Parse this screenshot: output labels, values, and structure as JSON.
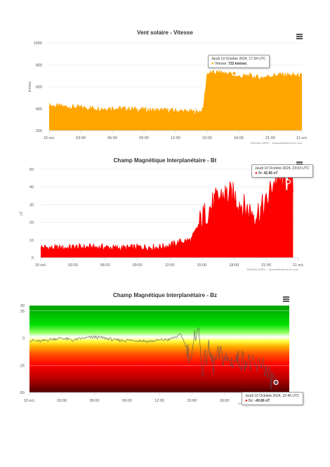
{
  "charts": [
    {
      "title": "Vent solaire - Vitesse",
      "ylabel": "km/sec",
      "credit": "BNOAA SWPC - SpaceWeatherLive.com",
      "tooltip": {
        "date": "Jeudi 10 Octobre 2024, 17:34 UTC",
        "series": "Vitesse:",
        "value": "722 km/sec"
      }
    },
    {
      "title": "Champ Magnétique Interplanétaire - Bt",
      "ylabel": "nT",
      "credit": "BNOAA SWPC - SpaceWeatherLive.com",
      "tooltip": {
        "date": "Jeudi 10 Octobre 2024, 23:03 UTC",
        "series": "Bt:",
        "value": "42.95 nT"
      }
    },
    {
      "title": "Champ Magnétique Interplanétaire - Bz",
      "ylabel": "",
      "credit": "BNOAA SWPC - SpaceWeatherLive.com",
      "tooltip": {
        "date": "Jeudi 10 Octobre 2024, 22:46 UTC",
        "series": "Bz:",
        "value": "-40.66 nT"
      }
    }
  ],
  "chart_data": [
    {
      "type": "area",
      "title": "Vent solaire - Vitesse",
      "ylabel": "km/sec",
      "x": [
        "10 oct.",
        "03:00",
        "06:00",
        "09:00",
        "12:00",
        "15:00",
        "18:00",
        "21:00",
        "11 oct."
      ],
      "x_hours": [
        0,
        3,
        6,
        9,
        12,
        15,
        18,
        21,
        24
      ],
      "ylim": [
        200,
        1000
      ],
      "yticks": [
        200,
        400,
        600,
        800,
        1000
      ],
      "series": [
        {
          "color": "#ffa500",
          "points": [
            [
              0,
              430
            ],
            [
              1,
              420
            ],
            [
              2,
              415
            ],
            [
              3,
              410
            ],
            [
              4,
              405
            ],
            [
              5,
              400
            ],
            [
              6,
              405
            ],
            [
              7,
              400
            ],
            [
              8,
              395
            ],
            [
              9,
              390
            ],
            [
              10,
              385
            ],
            [
              11,
              385
            ],
            [
              12,
              380
            ],
            [
              13,
              375
            ],
            [
              14,
              370
            ],
            [
              14.6,
              380
            ],
            [
              15,
              720
            ],
            [
              16,
              730
            ],
            [
              17,
              722
            ],
            [
              18,
              690
            ],
            [
              19,
              700
            ],
            [
              20,
              680
            ],
            [
              21,
              700
            ],
            [
              22,
              710
            ],
            [
              23,
              705
            ],
            [
              24,
              700
            ]
          ]
        }
      ],
      "marker": {
        "x": 17.57,
        "y": 722
      }
    },
    {
      "type": "area",
      "title": "Champ Magnétique Interplanétaire - Bt",
      "ylabel": "nT",
      "x": [
        "10 oct.",
        "03:00",
        "06:00",
        "09:00",
        "12:00",
        "15:00",
        "18:00",
        "21:00",
        "11 oct."
      ],
      "x_hours": [
        0,
        3,
        6,
        9,
        12,
        15,
        18,
        21,
        24
      ],
      "ylim": [
        0,
        50
      ],
      "yticks": [
        0,
        10,
        20,
        30,
        40,
        50
      ],
      "series": [
        {
          "color": "#ff0000",
          "points": [
            [
              0,
              6
            ],
            [
              1,
              5.5
            ],
            [
              2,
              5.5
            ],
            [
              3,
              6
            ],
            [
              4,
              6
            ],
            [
              5,
              6
            ],
            [
              6,
              6
            ],
            [
              7,
              5.5
            ],
            [
              8,
              5.5
            ],
            [
              9,
              6
            ],
            [
              10,
              6
            ],
            [
              11,
              6
            ],
            [
              12,
              7
            ],
            [
              13,
              9
            ],
            [
              14,
              10
            ],
            [
              15,
              22
            ],
            [
              16,
              30
            ],
            [
              17,
              36
            ],
            [
              18,
              35
            ],
            [
              19,
              28
            ],
            [
              20,
              25
            ],
            [
              21,
              30
            ],
            [
              21.6,
              42
            ],
            [
              22,
              44
            ],
            [
              23,
              43
            ],
            [
              23.5,
              43
            ]
          ]
        }
      ],
      "marker": {
        "x": 23.05,
        "y": 42.95
      }
    },
    {
      "type": "line",
      "title": "Champ Magnétique Interplanétaire - Bz",
      "ylabel": "",
      "x": [
        "10 oct.",
        "03:00",
        "06:00",
        "09:00",
        "12:00",
        "15:00",
        "18:00",
        "21:00",
        "11 oct."
      ],
      "x_hours": [
        0,
        3,
        6,
        9,
        12,
        15,
        18,
        21,
        24
      ],
      "ylim": [
        -50,
        30
      ],
      "yticks": [
        -50,
        -25,
        0,
        25,
        30
      ],
      "series": [
        {
          "color": "#555555",
          "points": [
            [
              0,
              -2
            ],
            [
              1,
              -3
            ],
            [
              2,
              -1
            ],
            [
              3,
              0
            ],
            [
              4,
              -2
            ],
            [
              5,
              0
            ],
            [
              6,
              1
            ],
            [
              7,
              0
            ],
            [
              8,
              -2
            ],
            [
              9,
              -2
            ],
            [
              10,
              -2
            ],
            [
              11,
              -3
            ],
            [
              12,
              -2
            ],
            [
              13,
              -1
            ],
            [
              14,
              3
            ],
            [
              14.5,
              -8
            ],
            [
              15,
              -20
            ],
            [
              15.5,
              15
            ],
            [
              16,
              -30
            ],
            [
              16.5,
              -10
            ],
            [
              17,
              -25
            ],
            [
              17.5,
              -15
            ],
            [
              18,
              -18
            ],
            [
              18.5,
              -22
            ],
            [
              19,
              -20
            ],
            [
              20,
              -20
            ],
            [
              20.5,
              -25
            ],
            [
              21,
              -28
            ],
            [
              21.5,
              -20
            ],
            [
              22,
              -35
            ],
            [
              22.77,
              -40.66
            ]
          ]
        }
      ],
      "marker": {
        "x": 22.77,
        "y": -40.66
      }
    }
  ]
}
